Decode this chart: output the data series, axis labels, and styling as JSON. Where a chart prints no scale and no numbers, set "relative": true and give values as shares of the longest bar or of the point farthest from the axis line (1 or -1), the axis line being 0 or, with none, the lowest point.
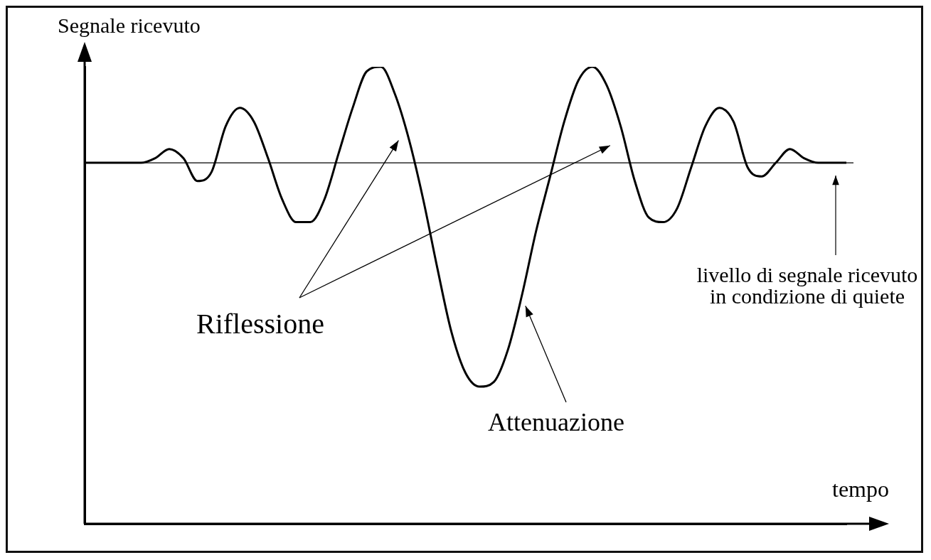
{
  "chart_data": {
    "type": "line",
    "relative": true,
    "ylabel": "Segnale ricevuto",
    "xlabel": "tempo",
    "categories": [
      null,
      null,
      null,
      null,
      null,
      null,
      null,
      null,
      null,
      null,
      null,
      null,
      null,
      null,
      null,
      null,
      null,
      null,
      null,
      null,
      null,
      null,
      null,
      null,
      null,
      null,
      null,
      null,
      null,
      null,
      null,
      null,
      null,
      null,
      null,
      null,
      null,
      null,
      null,
      null,
      null,
      null,
      null,
      null,
      null,
      null,
      null,
      null,
      null,
      null,
      null,
      null,
      null,
      null,
      null
    ],
    "series": [
      {
        "color": "#000000",
        "values": [
          0.79,
          0.79,
          0.79,
          0.79,
          0.79,
          0.8,
          0.82,
          0.8,
          0.75,
          0.77,
          0.87,
          0.91,
          0.88,
          0.8,
          0.71,
          0.66,
          0.66,
          0.71,
          0.81,
          0.91,
          0.99,
          1.0,
          0.94,
          0.84,
          0.71,
          0.56,
          0.42,
          0.33,
          0.3,
          0.31,
          0.38,
          0.5,
          0.64,
          0.76,
          0.88,
          0.97,
          1.0,
          0.96,
          0.87,
          0.75,
          0.67,
          0.66,
          0.69,
          0.78,
          0.87,
          0.91,
          0.88,
          0.78,
          0.76,
          0.79,
          0.82,
          0.8,
          0.79,
          0.79,
          0.79
        ]
      }
    ],
    "ref_lines": [
      {
        "axis": "y",
        "value": 0.79,
        "label": "livello di segnale ricevuto in condizione di quiete"
      }
    ],
    "annotations": [
      "Riflessione",
      "Attenuazione"
    ],
    "legend": false,
    "marker": "none",
    "line_style": "solid"
  }
}
